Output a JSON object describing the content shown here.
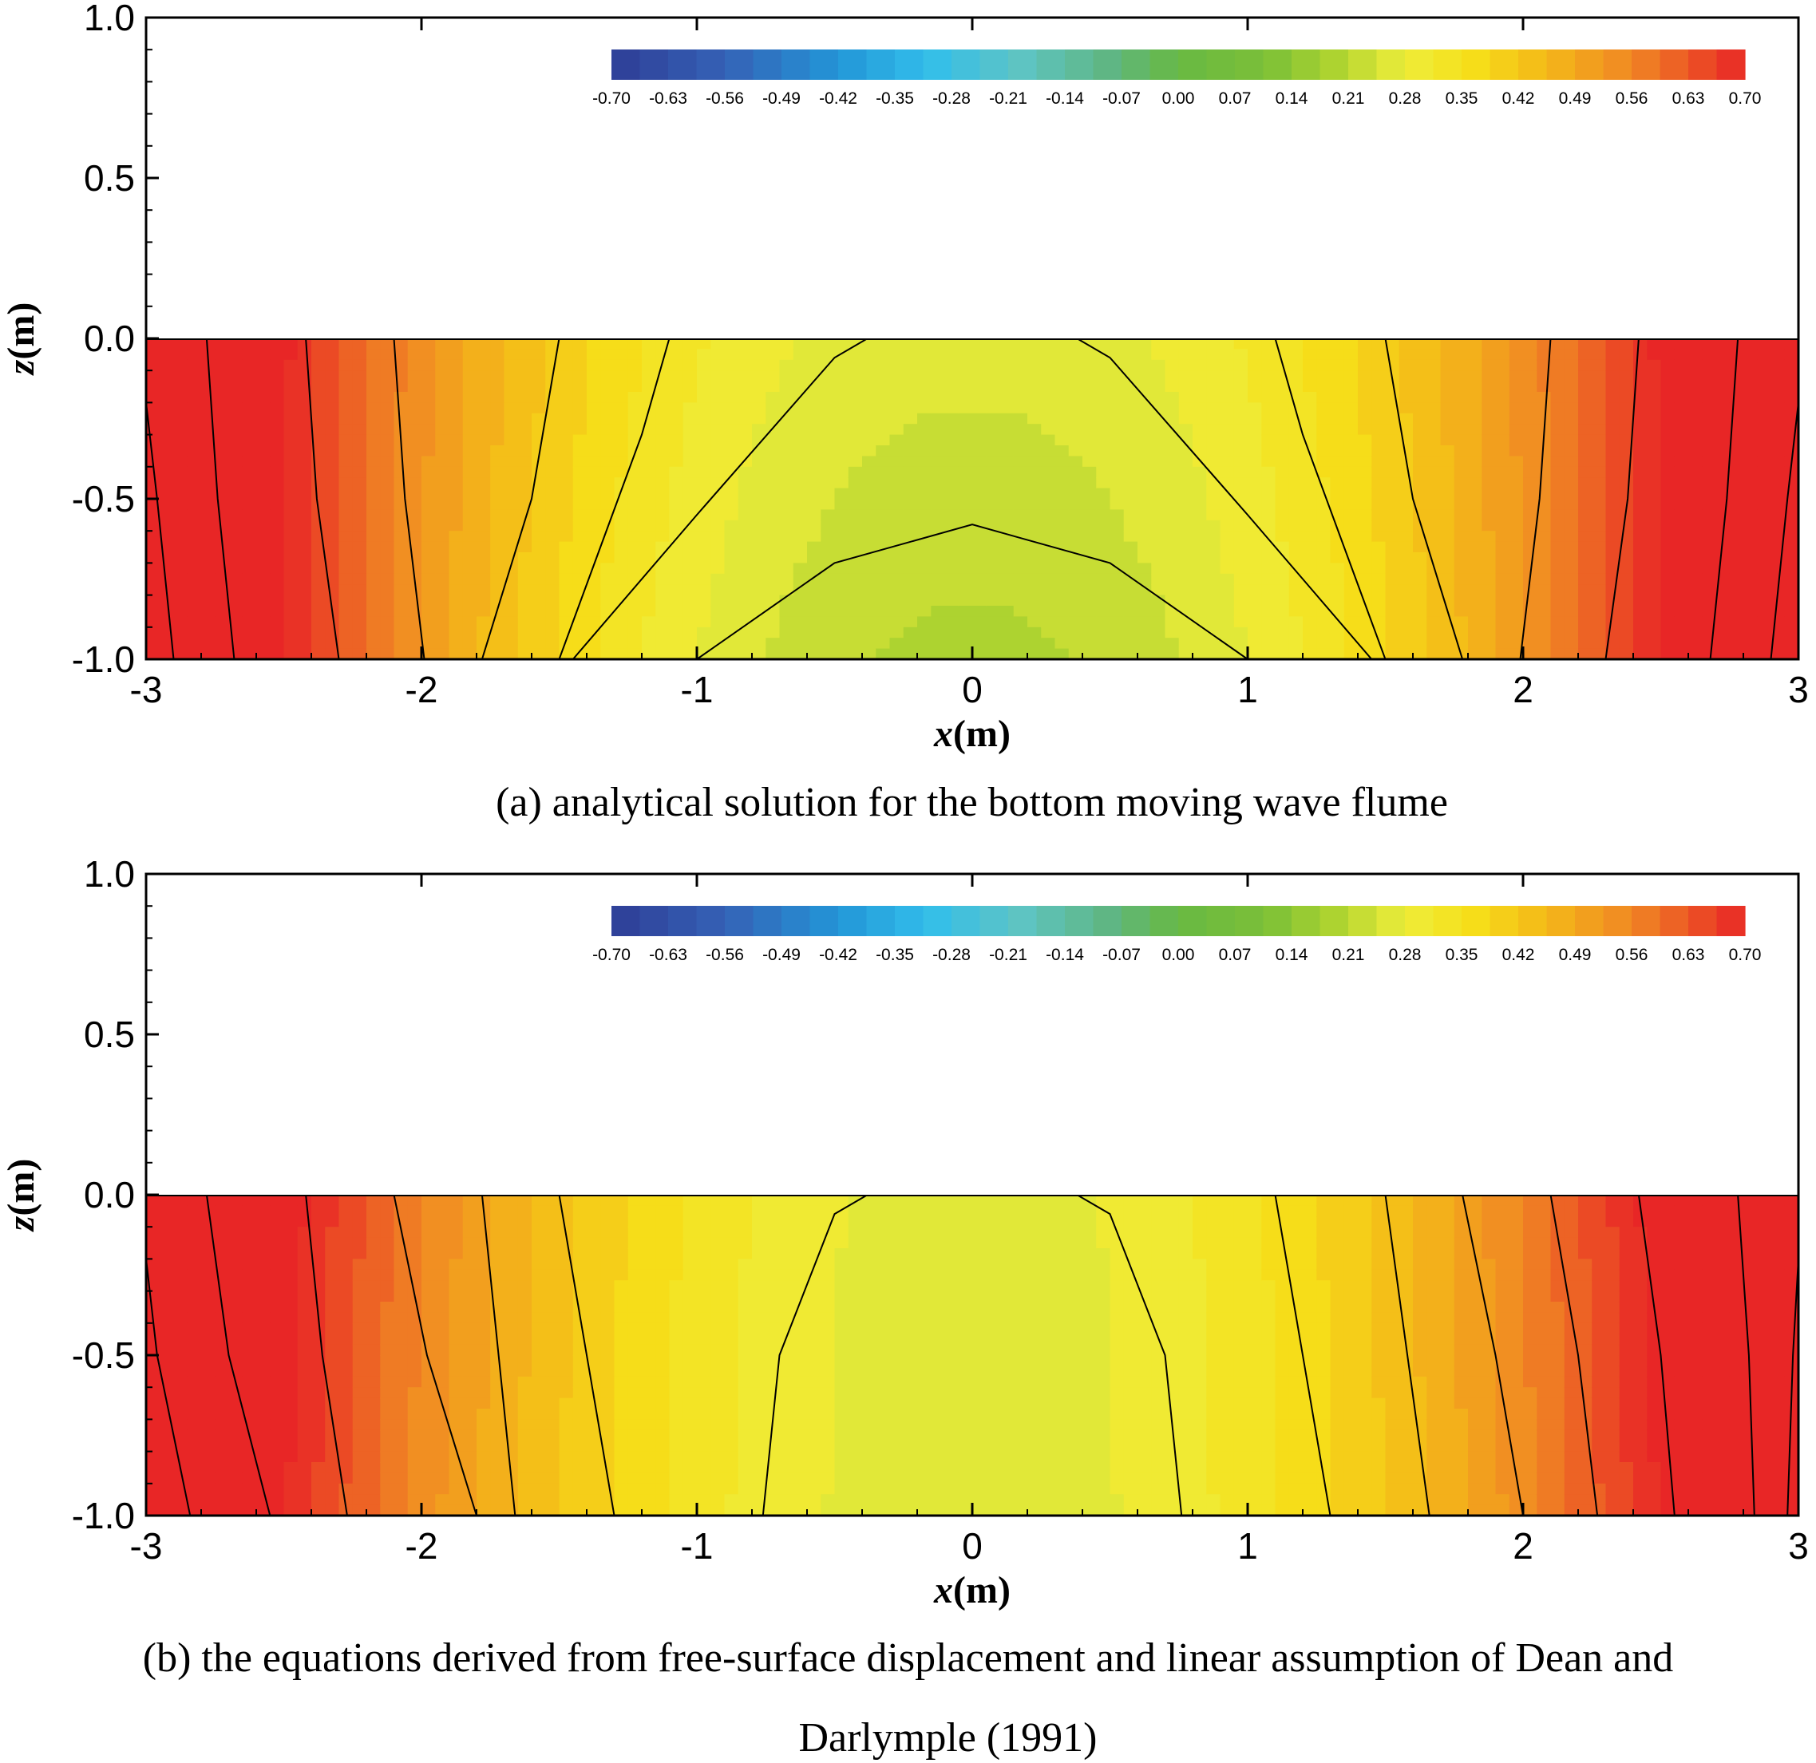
{
  "chart_data": [
    {
      "type": "heatmap",
      "caption": "(a) analytical solution for the bottom moving wave flume",
      "xlabel_var": "x",
      "xlabel_unit": "(m)",
      "ylabel_var": "z",
      "ylabel_unit": "(m)",
      "xlim": [
        -3,
        3
      ],
      "ylim": [
        -1.0,
        1.0
      ],
      "x_ticks": [
        "-3",
        "-2",
        "-1",
        "0",
        "1",
        "2",
        "3"
      ],
      "y_ticks": [
        "1.0",
        "0.5",
        "0.0",
        "-0.5",
        "-1.0"
      ],
      "water_depth_range": [
        -1.0,
        0.0
      ],
      "colorbar": {
        "min": -0.7,
        "max": 0.7,
        "step": 0.035,
        "labels": [
          "-0.70",
          "-0.63",
          "-0.56",
          "-0.49",
          "-0.42",
          "-0.35",
          "-0.28",
          "-0.21",
          "-0.14",
          "-0.07",
          "0.00",
          "0.07",
          "0.14",
          "0.21",
          "0.28",
          "0.35",
          "0.42",
          "0.49",
          "0.56",
          "0.63",
          "0.70"
        ],
        "placement": "top-right inside plot"
      },
      "contour_lines": [
        {
          "level": 0.7,
          "points": [
            [
              -3,
              -0.2
            ],
            [
              -2.96,
              -0.5
            ],
            [
              -2.9,
              -1.0
            ]
          ]
        },
        {
          "level": 0.63,
          "points": [
            [
              -2.78,
              0.0
            ],
            [
              -2.74,
              -0.5
            ],
            [
              -2.68,
              -1.0
            ]
          ]
        },
        {
          "level": 0.56,
          "points": [
            [
              -2.42,
              0.0
            ],
            [
              -2.38,
              -0.5
            ],
            [
              -2.3,
              -1.0
            ]
          ]
        },
        {
          "level": 0.49,
          "points": [
            [
              -2.1,
              0.0
            ],
            [
              -2.06,
              -0.5
            ],
            [
              -1.99,
              -1.0
            ]
          ]
        },
        {
          "level": 0.42,
          "points": [
            [
              -1.5,
              0.0
            ],
            [
              -1.6,
              -0.5
            ],
            [
              -1.78,
              -1.0
            ]
          ]
        },
        {
          "level": 0.35,
          "points": [
            [
              -1.1,
              0.0
            ],
            [
              -1.2,
              -0.3
            ],
            [
              -1.5,
              -1.0
            ]
          ]
        },
        {
          "level": 0.28,
          "points": [
            [
              -0.38,
              0.0
            ],
            [
              -0.5,
              -0.06
            ],
            [
              -1.0,
              -0.55
            ],
            [
              -1.45,
              -1.0
            ]
          ]
        },
        {
          "level": 0.21,
          "points": [
            [
              -1.0,
              -1.0
            ],
            [
              -0.5,
              -0.7
            ],
            [
              0,
              -0.58
            ],
            [
              0.5,
              -0.7
            ],
            [
              1.0,
              -1.0
            ]
          ]
        },
        {
          "level": 0.28,
          "points": [
            [
              0.38,
              0.0
            ],
            [
              0.5,
              -0.06
            ],
            [
              1.0,
              -0.55
            ],
            [
              1.45,
              -1.0
            ]
          ]
        },
        {
          "level": 0.35,
          "points": [
            [
              1.1,
              0.0
            ],
            [
              1.2,
              -0.3
            ],
            [
              1.5,
              -1.0
            ]
          ]
        },
        {
          "level": 0.42,
          "points": [
            [
              1.5,
              0.0
            ],
            [
              1.6,
              -0.5
            ],
            [
              1.78,
              -1.0
            ]
          ]
        },
        {
          "level": 0.49,
          "points": [
            [
              2.1,
              0.0
            ],
            [
              2.06,
              -0.5
            ],
            [
              1.99,
              -1.0
            ]
          ]
        },
        {
          "level": 0.56,
          "points": [
            [
              2.42,
              0.0
            ],
            [
              2.38,
              -0.5
            ],
            [
              2.3,
              -1.0
            ]
          ]
        },
        {
          "level": 0.63,
          "points": [
            [
              2.78,
              0.0
            ],
            [
              2.74,
              -0.5
            ],
            [
              2.68,
              -1.0
            ]
          ]
        },
        {
          "level": 0.7,
          "points": [
            [
              3,
              -0.2
            ],
            [
              2.96,
              -0.5
            ],
            [
              2.9,
              -1.0
            ]
          ]
        }
      ]
    },
    {
      "type": "heatmap",
      "caption_line1": "(b) the equations derived from free-surface displacement and linear assumption of Dean and",
      "caption_line2": "Darlymple (1991)",
      "xlabel_var": "x",
      "xlabel_unit": "(m)",
      "ylabel_var": "z",
      "ylabel_unit": "(m)",
      "xlim": [
        -3,
        3
      ],
      "ylim": [
        -1.0,
        1.0
      ],
      "x_ticks": [
        "-3",
        "-2",
        "-1",
        "0",
        "1",
        "2",
        "3"
      ],
      "y_ticks": [
        "1.0",
        "0.5",
        "0.0",
        "-0.5",
        "-1.0"
      ],
      "water_depth_range": [
        -1.0,
        0.0
      ],
      "colorbar": {
        "min": -0.7,
        "max": 0.7,
        "step": 0.035,
        "labels": [
          "-0.70",
          "-0.63",
          "-0.56",
          "-0.49",
          "-0.42",
          "-0.35",
          "-0.28",
          "-0.21",
          "-0.14",
          "-0.07",
          "0.00",
          "0.07",
          "0.14",
          "0.21",
          "0.28",
          "0.35",
          "0.42",
          "0.49",
          "0.56",
          "0.63",
          "0.70"
        ],
        "placement": "top-right inside plot"
      },
      "contour_lines": [
        {
          "level": 0.7,
          "points": [
            [
              -3,
              -0.2
            ],
            [
              -2.96,
              -0.5
            ],
            [
              -2.84,
              -1.0
            ]
          ]
        },
        {
          "level": 0.63,
          "points": [
            [
              -2.78,
              0.0
            ],
            [
              -2.7,
              -0.5
            ],
            [
              -2.55,
              -1.0
            ]
          ]
        },
        {
          "level": 0.56,
          "points": [
            [
              -2.42,
              0.0
            ],
            [
              -2.36,
              -0.5
            ],
            [
              -2.27,
              -1.0
            ]
          ]
        },
        {
          "level": 0.49,
          "points": [
            [
              -2.1,
              0.0
            ],
            [
              -1.98,
              -0.5
            ],
            [
              -1.8,
              -1.0
            ]
          ]
        },
        {
          "level": 0.42,
          "points": [
            [
              -1.78,
              0.0
            ],
            [
              -1.72,
              -0.5
            ],
            [
              -1.66,
              -1.0
            ]
          ]
        },
        {
          "level": 0.35,
          "points": [
            [
              -1.5,
              0.0
            ],
            [
              -1.4,
              -0.5
            ],
            [
              -1.3,
              -1.0
            ]
          ]
        },
        {
          "level": 0.28,
          "points": [
            [
              -0.38,
              0.0
            ],
            [
              -0.5,
              -0.06
            ],
            [
              -0.7,
              -0.5
            ],
            [
              -0.76,
              -1.0
            ]
          ]
        },
        {
          "level": 0.28,
          "points": [
            [
              0.38,
              0.0
            ],
            [
              0.5,
              -0.06
            ],
            [
              0.7,
              -0.5
            ],
            [
              0.76,
              -1.0
            ]
          ]
        },
        {
          "level": 0.35,
          "points": [
            [
              1.1,
              0.0
            ],
            [
              1.2,
              -0.5
            ],
            [
              1.3,
              -1.0
            ]
          ]
        },
        {
          "level": 0.42,
          "points": [
            [
              1.5,
              0.0
            ],
            [
              1.58,
              -0.5
            ],
            [
              1.66,
              -1.0
            ]
          ]
        },
        {
          "level": 0.49,
          "points": [
            [
              1.78,
              0.0
            ],
            [
              1.9,
              -0.5
            ],
            [
              2.0,
              -1.0
            ]
          ]
        },
        {
          "level": 0.56,
          "points": [
            [
              2.1,
              0.0
            ],
            [
              2.2,
              -0.5
            ],
            [
              2.27,
              -1.0
            ]
          ]
        },
        {
          "level": 0.63,
          "points": [
            [
              2.42,
              0.0
            ],
            [
              2.5,
              -0.5
            ],
            [
              2.55,
              -1.0
            ]
          ]
        },
        {
          "level": 0.7,
          "points": [
            [
              2.78,
              0.0
            ],
            [
              2.82,
              -0.5
            ],
            [
              2.84,
              -1.0
            ]
          ]
        },
        {
          "level": 0.7,
          "points": [
            [
              3,
              -0.2
            ],
            [
              2.98,
              -0.5
            ],
            [
              2.96,
              -1.0
            ]
          ]
        }
      ]
    }
  ]
}
